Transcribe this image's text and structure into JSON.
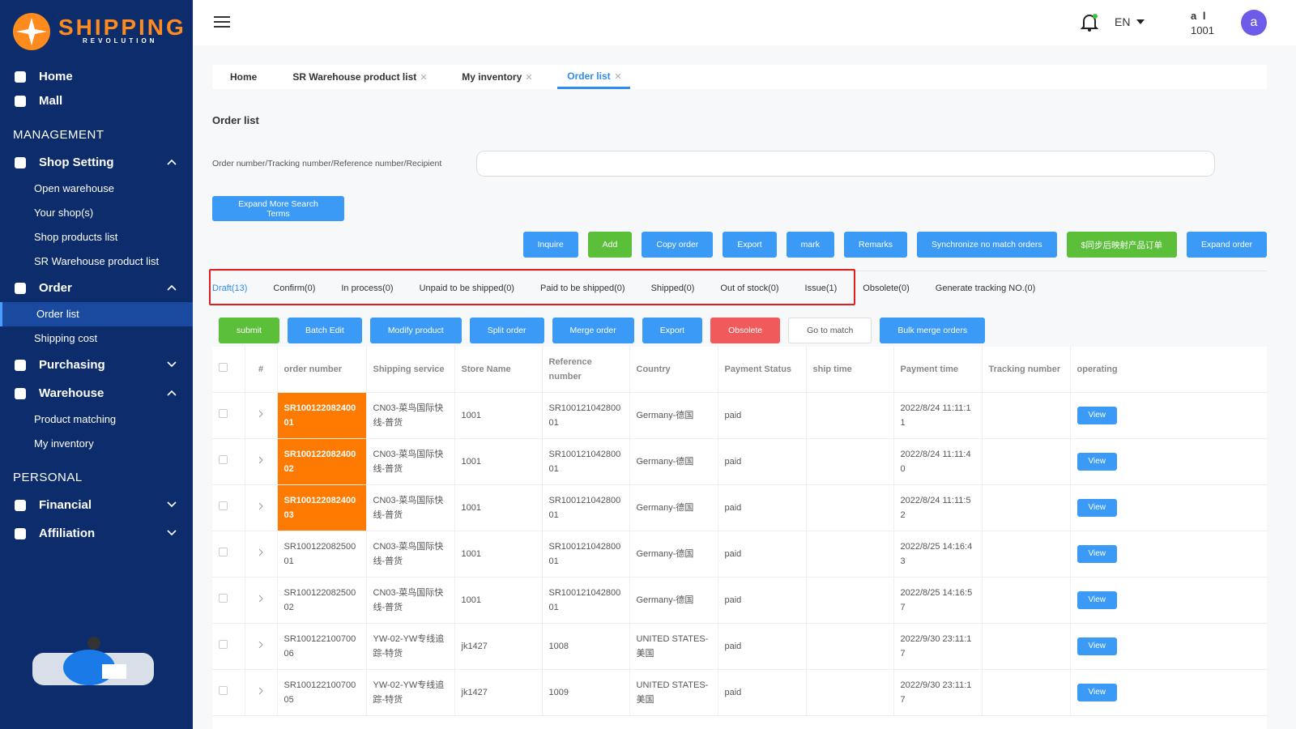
{
  "sidebar": {
    "logo": "SHIPPING",
    "logo_sub": "REVOLUTION",
    "top_links": [
      "Home",
      "Mall"
    ],
    "sections": [
      {
        "title": "MANAGEMENT",
        "groups": [
          {
            "label": "Shop Setting",
            "children": [
              "Open warehouse",
              "Your shop(s)",
              "Shop products list",
              "SR Warehouse product list"
            ]
          },
          {
            "label": "Order",
            "children": [
              "Order list",
              "Shipping cost"
            ]
          },
          {
            "label": "Purchasing"
          },
          {
            "label": "Warehouse",
            "children": [
              "Product matching",
              "My inventory"
            ]
          }
        ]
      },
      {
        "title": "PERSONAL",
        "groups": [
          {
            "label": "Financial"
          },
          {
            "label": "Affiliation"
          }
        ]
      }
    ]
  },
  "header": {
    "language": "EN",
    "user_name": "a l",
    "user_id": "1001",
    "avatar": "a"
  },
  "tabs": [
    "Home",
    "SR Warehouse product list",
    "My inventory",
    "Order list"
  ],
  "page": {
    "title": "Order list",
    "search_label": "Order number/Tracking number/Reference number/Recipient",
    "expand_button": "Expand More Search Terms",
    "actions": [
      "Inquire",
      "Add",
      "Copy order",
      "Export",
      "mark",
      "Remarks",
      "Synchronize no match orders",
      "$同步后映射产品订单",
      "Expand order"
    ],
    "status_tabs": [
      "Draft(13)",
      "Confirm(0)",
      "In process(0)",
      "Unpaid to be shipped(0)",
      "Paid to be shipped(0)",
      "Shipped(0)",
      "Out of stock(0)",
      "Issue(1)",
      "Obsolete(0)",
      "Generate tracking NO.(0)"
    ],
    "bulk_actions": [
      "submit",
      "Batch Edit",
      "Modify product",
      "Split order",
      "Merge order",
      "Export",
      "Obsolete",
      "Go to match",
      "Bulk merge orders"
    ],
    "table": {
      "columns": [
        "#",
        "order number",
        "Shipping service",
        "Store Name",
        "Reference number",
        "Country",
        "Payment Status",
        "ship time",
        "Payment time",
        "Tracking number",
        "operating"
      ],
      "rows": [
        [
          "SR10012208240001",
          "CN03-菜鸟国际快线-普货",
          "1001",
          "SR10012104280001",
          "Germany-德国",
          "paid",
          null,
          "2022/8/24 11:11:11",
          null,
          "View"
        ],
        [
          "SR10012208240002",
          "CN03-菜鸟国际快线-普货",
          "1001",
          "SR10012104280001",
          "Germany-德国",
          "paid",
          null,
          "2022/8/24 11:11:40",
          null,
          "View"
        ],
        [
          "SR10012208240003",
          "CN03-菜鸟国际快线-普货",
          "1001",
          "SR10012104280001",
          "Germany-德国",
          "paid",
          null,
          "2022/8/24 11:11:52",
          null,
          "View"
        ],
        [
          "SR10012208250001",
          "CN03-菜鸟国际快线-普货",
          "1001",
          "SR10012104280001",
          "Germany-德国",
          "paid",
          null,
          "2022/8/25 14:16:43",
          null,
          "View"
        ],
        [
          "SR10012208250002",
          "CN03-菜鸟国际快线-普货",
          "1001",
          "SR10012104280001",
          "Germany-德国",
          "paid",
          null,
          "2022/8/25 14:16:57",
          null,
          "View"
        ],
        [
          "SR10012210070006",
          "YW-02-YW专线追踪-特货",
          "jk1427",
          "1008",
          "UNITED STATES-美国",
          "paid",
          null,
          "2022/9/30 23:11:17",
          null,
          "View"
        ],
        [
          "SR10012210070005",
          "YW-02-YW专线追踪-特货",
          "jk1427",
          "1009",
          "UNITED STATES-美国",
          "paid",
          null,
          "2022/9/30 23:11:17",
          null,
          "View"
        ]
      ]
    }
  }
}
